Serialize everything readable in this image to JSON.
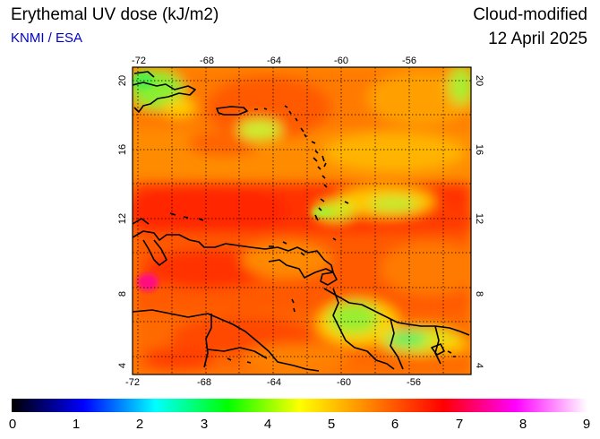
{
  "header": {
    "title": "Erythemal UV dose (kJ/m2)",
    "credit": "KNMI / ESA",
    "product": "Cloud-modified",
    "date": "12 April 2025"
  },
  "map": {
    "lon_ticks": [
      "-72",
      "-68",
      "-64",
      "-60",
      "-56"
    ],
    "lat_ticks": [
      "20",
      "16",
      "12",
      "8",
      "4"
    ],
    "field_colors": {
      "orange": "#ff8c00",
      "deep_orange": "#ff5a00",
      "red": "#ff2e00",
      "yellow": "#ffcc00",
      "green": "#66ee33",
      "magenta": "#ff1080"
    },
    "coast_color": "#000000"
  },
  "colorbar": {
    "labels": [
      "0",
      "1",
      "2",
      "3",
      "4",
      "5",
      "6",
      "7",
      "8",
      "9"
    ],
    "stops": [
      "#000000",
      "#0000ff",
      "#00ffff",
      "#00ff00",
      "#ffff00",
      "#ff8000",
      "#ff0000",
      "#ff00ff",
      "#ffffff"
    ]
  }
}
